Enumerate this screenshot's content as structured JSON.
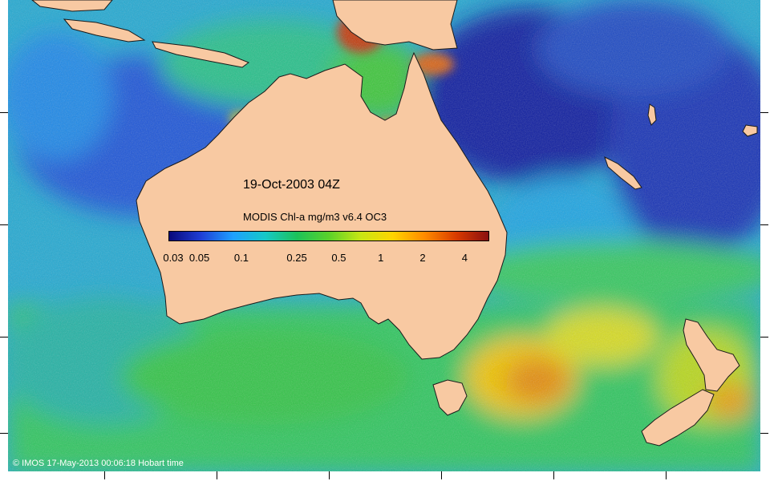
{
  "map": {
    "title": "19-Oct-2003 04Z",
    "credit": "© IMOS 17-May-2013 00:06:18 Hobart time"
  },
  "legend": {
    "title": "MODIS Chl-a mg/m3 v6.4 OC3",
    "min": 0.03,
    "max": 6,
    "scale": "log",
    "ticks": [
      {
        "label": "0.03",
        "value": 0.03
      },
      {
        "label": "0.05",
        "value": 0.05
      },
      {
        "label": "0.1",
        "value": 0.1
      },
      {
        "label": "0.25",
        "value": 0.25
      },
      {
        "label": "0.5",
        "value": 0.5
      },
      {
        "label": "1",
        "value": 1
      },
      {
        "label": "2",
        "value": 2
      },
      {
        "label": "4",
        "value": 4
      }
    ],
    "colors": [
      "#08087a",
      "#1f3fd6",
      "#1ea0ff",
      "#16c8c8",
      "#1cc25a",
      "#5ad22a",
      "#c8e614",
      "#ffd400",
      "#ff8a00",
      "#d83a00",
      "#8a1010"
    ]
  },
  "colors": {
    "land": "#f8c9a2",
    "ocean_deep": "#1848c8",
    "ocean_mid": "#24b4c8",
    "ocean_green": "#22c24a",
    "bloom": "#f0c000"
  }
}
